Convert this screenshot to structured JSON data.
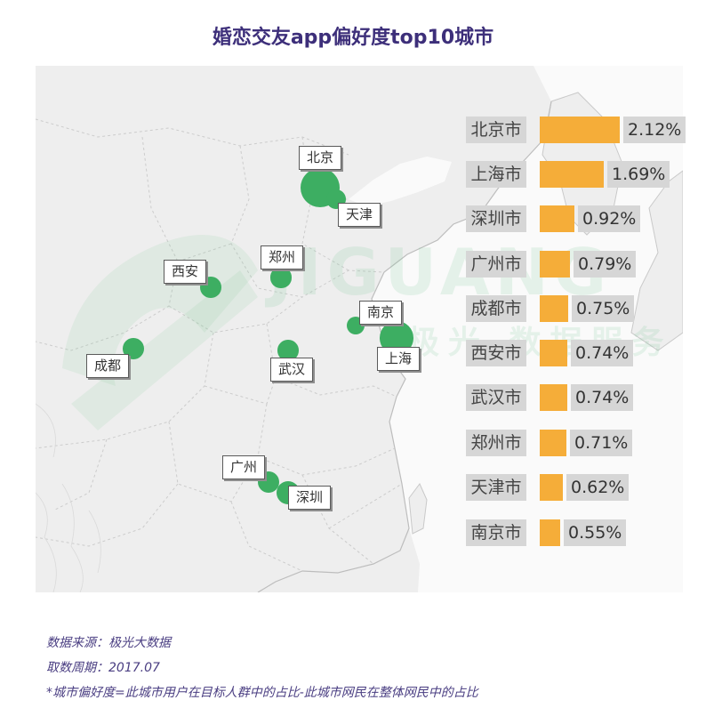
{
  "chart_data": {
    "type": "bar",
    "orientation": "horizontal",
    "title": "婚恋交友app偏好度top10城市",
    "categories": [
      "北京市",
      "上海市",
      "深圳市",
      "广州市",
      "成都市",
      "西安市",
      "武汉市",
      "郑州市",
      "天津市",
      "南京市"
    ],
    "values": [
      2.12,
      1.69,
      0.92,
      0.79,
      0.75,
      0.74,
      0.74,
      0.71,
      0.62,
      0.55
    ],
    "value_labels": [
      "2.12%",
      "1.69%",
      "0.92%",
      "0.79%",
      "0.75%",
      "0.74%",
      "0.74%",
      "0.71%",
      "0.62%",
      "0.55%"
    ],
    "unit": "%",
    "bar_color": "#f5ad39",
    "map_markers": [
      {
        "city": "北京",
        "value": 2.12
      },
      {
        "city": "天津",
        "value": 0.62
      },
      {
        "city": "郑州",
        "value": 0.71
      },
      {
        "city": "西安",
        "value": 0.74
      },
      {
        "city": "南京",
        "value": 0.55
      },
      {
        "city": "上海",
        "value": 1.69
      },
      {
        "city": "成都",
        "value": 0.75
      },
      {
        "city": "武汉",
        "value": 0.74
      },
      {
        "city": "广州",
        "value": 0.79
      },
      {
        "city": "深圳",
        "value": 0.92
      }
    ],
    "marker_color": "#3dae62"
  },
  "watermark": {
    "brand": "JIGUANG",
    "slogan": "极光 数据服务"
  },
  "footnotes": {
    "source": "数据来源：极光大数据",
    "period": "取数周期：2017.07",
    "definition": "*城市偏好度=此城市用户在目标人群中的占比-此城市网民在整体网民中的占比"
  },
  "colors": {
    "title": "#3d2f7a",
    "footnote": "#4a3e82",
    "map_bg": "#eeeeee",
    "label_bg": "#d6d6d6"
  }
}
